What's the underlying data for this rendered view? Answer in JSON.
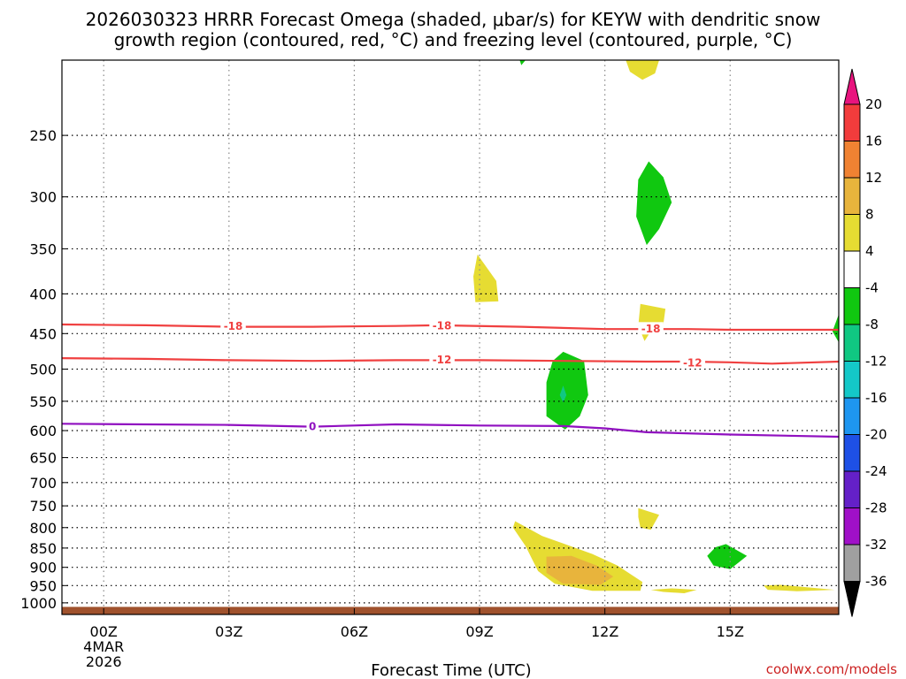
{
  "chart_data": {
    "type": "contour",
    "title_lines": [
      "2026030323 HRRR Forecast Omega (shaded, μbar/s) for KEYW with dendritic snow",
      "growth region (contoured, red, °C) and freezing level (contoured, purple, °C)"
    ],
    "xlabel": "Forecast Time (UTC)",
    "credit": "coolwx.com/models",
    "x_axis": {
      "range_hours": [
        -1.0,
        17.6
      ],
      "ticks": [
        {
          "hour": 0,
          "label": "00Z",
          "sub": [
            "4MAR",
            "2026"
          ]
        },
        {
          "hour": 3,
          "label": "03Z",
          "sub": []
        },
        {
          "hour": 6,
          "label": "06Z",
          "sub": []
        },
        {
          "hour": 9,
          "label": "09Z",
          "sub": []
        },
        {
          "hour": 12,
          "label": "12Z",
          "sub": []
        },
        {
          "hour": 15,
          "label": "15Z",
          "sub": []
        }
      ]
    },
    "y_axis": {
      "scale": "log-pressure",
      "range_mb": [
        1035,
        200
      ],
      "ticks": [
        250,
        300,
        350,
        400,
        450,
        500,
        550,
        600,
        650,
        700,
        750,
        800,
        850,
        900,
        950,
        1000
      ]
    },
    "ground_level_mb": 1012,
    "colorbar": {
      "labels": [
        "20",
        "16",
        "12",
        "8",
        "4",
        "-4",
        "-8",
        "-12",
        "-16",
        "-20",
        "-24",
        "-28",
        "-32",
        "-36"
      ],
      "colors": [
        "#e8147e",
        "#f23c3c",
        "#f08232",
        "#e8b43c",
        "#e6dc32",
        "#ffffff",
        "#10c810",
        "#10c882",
        "#14c8c8",
        "#1e96f0",
        "#1e50e6",
        "#6420c8",
        "#a010c8",
        "#a0a0a0",
        "#000000"
      ]
    },
    "contour_lines": [
      {
        "name": "-18",
        "color": "#f04040",
        "points": [
          [
            -1.0,
            438
          ],
          [
            1,
            439
          ],
          [
            3,
            441
          ],
          [
            5,
            441
          ],
          [
            7,
            440
          ],
          [
            8,
            439
          ],
          [
            10,
            441
          ],
          [
            12,
            444
          ],
          [
            14,
            444
          ],
          [
            15,
            445
          ],
          [
            17.6,
            445
          ]
        ],
        "labels": [
          {
            "text": "-18",
            "hour": 3.1,
            "mb": 440
          },
          {
            "text": "-18",
            "hour": 8.1,
            "mb": 439
          },
          {
            "text": "-18",
            "hour": 13.1,
            "mb": 443
          }
        ]
      },
      {
        "name": "-12",
        "color": "#f04040",
        "points": [
          [
            -1.0,
            484
          ],
          [
            1,
            485
          ],
          [
            3,
            487
          ],
          [
            5,
            488
          ],
          [
            7,
            487
          ],
          [
            9,
            487
          ],
          [
            11,
            488
          ],
          [
            13,
            489
          ],
          [
            14,
            489
          ],
          [
            15,
            490
          ],
          [
            16,
            492
          ],
          [
            17.6,
            489
          ]
        ],
        "labels": [
          {
            "text": "-12",
            "hour": 8.1,
            "mb": 486
          },
          {
            "text": "-12",
            "hour": 14.1,
            "mb": 490
          }
        ]
      },
      {
        "name": "0",
        "color": "#9010c0",
        "points": [
          [
            -1.0,
            588
          ],
          [
            1,
            589
          ],
          [
            3,
            590
          ],
          [
            5,
            593
          ],
          [
            7,
            589
          ],
          [
            9,
            591
          ],
          [
            11,
            592
          ],
          [
            12,
            596
          ],
          [
            13,
            603
          ],
          [
            15,
            607
          ],
          [
            17.6,
            611
          ]
        ],
        "labels": [
          {
            "text": "0",
            "hour": 5.0,
            "mb": 592
          }
        ]
      }
    ],
    "shaded_regions": [
      {
        "name": "omega-plus-4-top",
        "value": 4,
        "color": "#e6dc32",
        "points": [
          [
            12.5,
            200
          ],
          [
            13.3,
            200
          ],
          [
            13.2,
            208
          ],
          [
            12.9,
            212
          ],
          [
            12.6,
            207
          ]
        ]
      },
      {
        "name": "omega-minus-4-top",
        "value": -4,
        "color": "#10c810",
        "points": [
          [
            9.96,
            200
          ],
          [
            10.1,
            200
          ],
          [
            10.0,
            203
          ]
        ]
      },
      {
        "name": "omega-minus-4-300",
        "value": -4,
        "color": "#10c810",
        "points": [
          [
            13.05,
            270
          ],
          [
            13.4,
            283
          ],
          [
            13.6,
            305
          ],
          [
            13.3,
            330
          ],
          [
            13.0,
            346
          ],
          [
            12.75,
            318
          ],
          [
            12.8,
            285
          ]
        ]
      },
      {
        "name": "omega-plus-4-380",
        "value": 4,
        "color": "#e6dc32",
        "points": [
          [
            8.95,
            356
          ],
          [
            9.4,
            385
          ],
          [
            9.45,
            409
          ],
          [
            8.9,
            410
          ],
          [
            8.85,
            380
          ]
        ]
      },
      {
        "name": "omega-plus-4-430",
        "value": 4,
        "color": "#e6dc32",
        "points": [
          [
            12.85,
            412
          ],
          [
            13.45,
            418
          ],
          [
            13.4,
            438
          ],
          [
            13.1,
            447
          ],
          [
            12.95,
            460
          ],
          [
            12.8,
            440
          ]
        ]
      },
      {
        "name": "omega-minus-4-edge",
        "value": -4,
        "color": "#10c810",
        "points": [
          [
            17.6,
            425
          ],
          [
            17.6,
            462
          ],
          [
            17.45,
            447
          ]
        ]
      },
      {
        "name": "omega-minus-4-530",
        "value": -4,
        "color": "#10c810",
        "points": [
          [
            11.0,
            475
          ],
          [
            11.5,
            488
          ],
          [
            11.6,
            540
          ],
          [
            11.4,
            575
          ],
          [
            11.05,
            598
          ],
          [
            10.6,
            575
          ],
          [
            10.6,
            520
          ],
          [
            10.75,
            488
          ]
        ]
      },
      {
        "name": "omega-minus-8-530",
        "value": -8,
        "color": "#10c882",
        "points": [
          [
            11.0,
            525
          ],
          [
            11.08,
            540
          ],
          [
            11.0,
            552
          ],
          [
            10.92,
            540
          ]
        ]
      },
      {
        "name": "omega-plus-4-770",
        "value": 4,
        "color": "#e6dc32",
        "points": [
          [
            12.8,
            755
          ],
          [
            13.3,
            770
          ],
          [
            13.1,
            805
          ],
          [
            12.85,
            800
          ],
          [
            12.8,
            775
          ]
        ]
      },
      {
        "name": "omega-plus-4-900",
        "value": 4,
        "color": "#e6dc32",
        "points": [
          [
            9.85,
            785
          ],
          [
            10.5,
            820
          ],
          [
            11.7,
            865
          ],
          [
            12.3,
            895
          ],
          [
            12.9,
            940
          ],
          [
            12.85,
            965
          ],
          [
            11.7,
            965
          ],
          [
            10.8,
            945
          ],
          [
            10.4,
            910
          ],
          [
            10.1,
            845
          ],
          [
            9.8,
            800
          ]
        ]
      },
      {
        "name": "omega-plus-8-900",
        "value": 8,
        "color": "#e8b43c",
        "points": [
          [
            10.6,
            872
          ],
          [
            11.2,
            870
          ],
          [
            11.8,
            895
          ],
          [
            12.2,
            925
          ],
          [
            11.9,
            948
          ],
          [
            11.0,
            945
          ],
          [
            10.6,
            915
          ]
        ]
      },
      {
        "name": "omega-minus-4-870",
        "value": -4,
        "color": "#10c810",
        "points": [
          [
            14.9,
            840
          ],
          [
            15.4,
            870
          ],
          [
            15.0,
            905
          ],
          [
            14.6,
            895
          ],
          [
            14.45,
            870
          ],
          [
            14.65,
            848
          ]
        ]
      },
      {
        "name": "omega-plus-4-960",
        "value": 4,
        "color": "#e6dc32",
        "points": [
          [
            13.1,
            962
          ],
          [
            13.6,
            958
          ],
          [
            14.2,
            962
          ],
          [
            13.9,
            972
          ],
          [
            13.4,
            968
          ]
        ]
      },
      {
        "name": "omega-plus-4-950-right",
        "value": 4,
        "color": "#e6dc32",
        "points": [
          [
            15.8,
            950
          ],
          [
            16.2,
            948
          ],
          [
            17.5,
            962
          ],
          [
            16.6,
            966
          ],
          [
            15.9,
            962
          ]
        ]
      }
    ]
  }
}
